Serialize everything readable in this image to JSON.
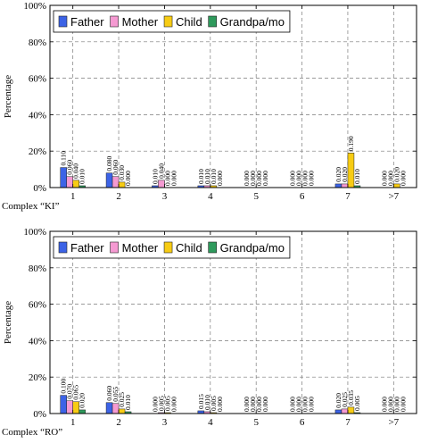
{
  "chart_data": [
    {
      "type": "bar",
      "xlabel": "Complex “KI”",
      "ylabel": "Percentage",
      "ylim": [
        0,
        1
      ],
      "yticks": [
        "0%",
        "20%",
        "40%",
        "60%",
        "80%",
        "100%"
      ],
      "categories": [
        "1",
        "2",
        "3",
        "4",
        "5",
        "6",
        "7",
        ">7"
      ],
      "grid": true,
      "legend_position": "top-left",
      "series": [
        {
          "name": "Father",
          "color": "#3c63e6",
          "values": [
            0.11,
            0.08,
            0.01,
            0.01,
            0.0,
            0.0,
            0.02,
            0.0
          ],
          "labels": [
            "0.110",
            "0.080",
            "0.010",
            "0.010",
            "0.000",
            "0.000",
            "0.020",
            "0.000"
          ]
        },
        {
          "name": "Mother",
          "color": "#f59ad2",
          "values": [
            0.06,
            0.06,
            0.04,
            0.01,
            0.0,
            0.0,
            0.02,
            0.0
          ],
          "labels": [
            "0.060",
            "0.060",
            "0.040",
            "0.010",
            "0.000",
            "0.000",
            "0.020",
            "0.000"
          ]
        },
        {
          "name": "Child",
          "color": "#f7cc14",
          "values": [
            0.04,
            0.03,
            0.0,
            0.01,
            0.0,
            0.0,
            0.19,
            0.02
          ],
          "labels": [
            "0.040",
            "0.030",
            "0.000",
            "0.010",
            "0.000",
            "0.000",
            "0.190",
            "0.020"
          ]
        },
        {
          "name": "Grandpa/mo",
          "color": "#2e9a5c",
          "values": [
            0.01,
            0.0,
            0.0,
            0.0,
            0.0,
            0.0,
            0.01,
            0.0
          ],
          "labels": [
            "0.010",
            "0.000",
            "0.000",
            "0.000",
            "0.000",
            "0.000",
            "0.010",
            "0.000"
          ]
        }
      ]
    },
    {
      "type": "bar",
      "xlabel": "Complex “RO”",
      "ylabel": "Percentage",
      "ylim": [
        0,
        1
      ],
      "yticks": [
        "0%",
        "20%",
        "40%",
        "60%",
        "80%",
        "100%"
      ],
      "categories": [
        "1",
        "2",
        "3",
        "4",
        "5",
        "6",
        "7",
        ">7"
      ],
      "grid": true,
      "legend_position": "top-left",
      "series": [
        {
          "name": "Father",
          "color": "#3c63e6",
          "values": [
            0.1,
            0.06,
            0.0,
            0.015,
            0.0,
            0.0,
            0.02,
            0.0
          ],
          "labels": [
            "0.100",
            "0.060",
            "0.000",
            "0.015",
            "0.000",
            "0.000",
            "0.020",
            "0.000"
          ]
        },
        {
          "name": "Mother",
          "color": "#f59ad2",
          "values": [
            0.07,
            0.055,
            0.005,
            0.01,
            0.0,
            0.0,
            0.025,
            0.0
          ],
          "labels": [
            "0.070",
            "0.055",
            "0.005",
            "0.010",
            "0.000",
            "0.000",
            "0.025",
            "0.000"
          ]
        },
        {
          "name": "Child",
          "color": "#f7cc14",
          "values": [
            0.065,
            0.025,
            0.005,
            0.005,
            0.0,
            0.0,
            0.035,
            0.0
          ],
          "labels": [
            "0.065",
            "0.025",
            "0.005",
            "0.005",
            "0.000",
            "0.000",
            "0.035",
            "0.000"
          ]
        },
        {
          "name": "Grandpa/mo",
          "color": "#2e9a5c",
          "values": [
            0.02,
            0.01,
            0.0,
            0.0,
            0.0,
            0.0,
            0.005,
            0.0
          ],
          "labels": [
            "0.020",
            "0.010",
            "0.000",
            "0.000",
            "0.000",
            "0.000",
            "0.005",
            "0.000"
          ]
        }
      ]
    }
  ]
}
